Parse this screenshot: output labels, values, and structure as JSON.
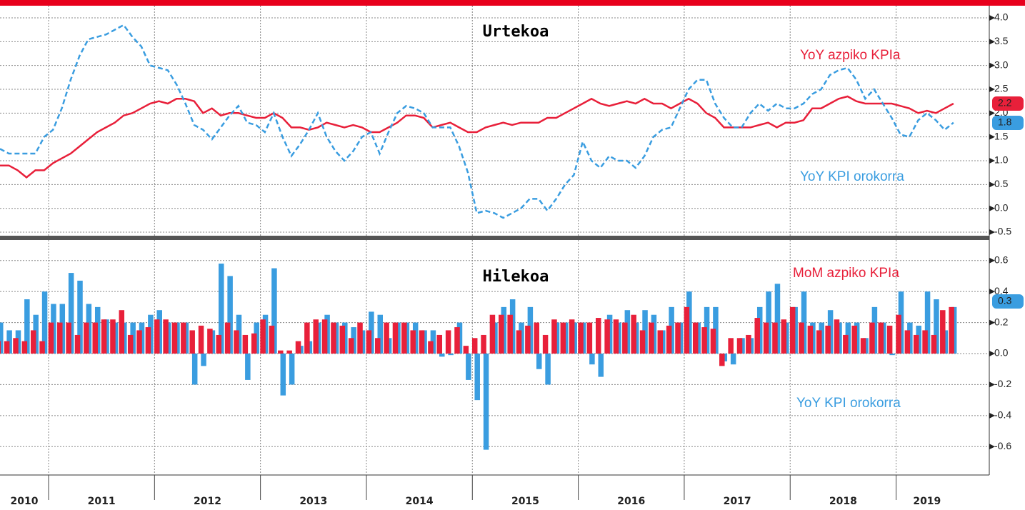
{
  "chart_data": [
    {
      "type": "line",
      "title": "Urtekoa",
      "annotations": [
        "YoY azpiko KPIa",
        "YoY KPI orokorra"
      ],
      "ylim": [
        -0.6,
        4.3
      ],
      "yticks": [
        {
          "value": 4,
          "label": "4.0"
        },
        3.5,
        {
          "value": 3,
          "label": "3.0"
        },
        2.5,
        {
          "value": 2,
          "label": "2.0"
        },
        1.5,
        {
          "value": 1,
          "label": "1.0"
        },
        0.5,
        {
          "value": 0,
          "label": "0.0"
        },
        -0.5
      ],
      "grid": true,
      "series": [
        {
          "name": "YoY azpiko KPIa",
          "color": "#e8203a",
          "dashed": false,
          "values": [
            0.9,
            0.9,
            0.8,
            0.65,
            0.8,
            0.8,
            0.95,
            1.05,
            1.15,
            1.3,
            1.45,
            1.6,
            1.7,
            1.8,
            1.95,
            2.0,
            2.1,
            2.2,
            2.25,
            2.2,
            2.3,
            2.3,
            2.25,
            2.0,
            2.1,
            1.95,
            2.0,
            2.0,
            1.95,
            1.9,
            1.9,
            2.0,
            1.9,
            1.7,
            1.7,
            1.65,
            1.7,
            1.8,
            1.75,
            1.7,
            1.75,
            1.7,
            1.6,
            1.6,
            1.7,
            1.8,
            1.95,
            1.95,
            1.9,
            1.7,
            1.75,
            1.8,
            1.7,
            1.6,
            1.6,
            1.7,
            1.75,
            1.8,
            1.75,
            1.8,
            1.8,
            1.8,
            1.9,
            1.9,
            2.0,
            2.1,
            2.2,
            2.3,
            2.2,
            2.15,
            2.2,
            2.25,
            2.2,
            2.3,
            2.2,
            2.2,
            2.1,
            2.2,
            2.3,
            2.2,
            2.0,
            1.9,
            1.7,
            1.7,
            1.7,
            1.7,
            1.75,
            1.8,
            1.7,
            1.8,
            1.8,
            1.85,
            2.1,
            2.1,
            2.2,
            2.3,
            2.35,
            2.25,
            2.2,
            2.2,
            2.2,
            2.2,
            2.15,
            2.1,
            2.0,
            2.05,
            2.0,
            2.1,
            2.2
          ]
        },
        {
          "name": "YoY KPI orokorra",
          "color": "#3a9de0",
          "dashed": true,
          "values": [
            1.25,
            1.15,
            1.15,
            1.15,
            1.15,
            1.5,
            1.65,
            2.1,
            2.7,
            3.2,
            3.55,
            3.6,
            3.65,
            3.75,
            3.85,
            3.6,
            3.4,
            3.0,
            2.95,
            2.9,
            2.6,
            2.2,
            1.75,
            1.65,
            1.45,
            1.7,
            1.95,
            2.15,
            1.8,
            1.75,
            1.6,
            2.0,
            1.5,
            1.1,
            1.35,
            1.65,
            2.0,
            1.5,
            1.2,
            1.0,
            1.2,
            1.5,
            1.6,
            1.15,
            1.6,
            2.0,
            2.15,
            2.1,
            2.0,
            1.7,
            1.7,
            1.7,
            1.3,
            0.75,
            -0.1,
            -0.05,
            -0.1,
            -0.2,
            -0.1,
            0.0,
            0.2,
            0.2,
            -0.05,
            0.2,
            0.5,
            0.7,
            1.4,
            1.0,
            0.85,
            1.1,
            1.0,
            1.0,
            0.85,
            1.1,
            1.5,
            1.65,
            1.7,
            2.1,
            2.5,
            2.7,
            2.7,
            2.2,
            1.9,
            1.7,
            1.7,
            2.0,
            2.2,
            2.05,
            2.2,
            2.1,
            2.1,
            2.2,
            2.4,
            2.5,
            2.8,
            2.9,
            2.95,
            2.7,
            2.3,
            2.5,
            2.2,
            1.9,
            1.55,
            1.5,
            1.85,
            2.0,
            1.85,
            1.65,
            1.8
          ]
        }
      ]
    },
    {
      "type": "bar",
      "title": "Hilekoa",
      "annotations": [
        "MoM azpiko KPIa",
        "YoY KPI orokorra"
      ],
      "x_labels": [
        "2010",
        "2011",
        "2012",
        "2013",
        "2014",
        "2015",
        "2016",
        "2017",
        "2018",
        "2019"
      ],
      "ylim": [
        -0.7,
        0.7
      ],
      "yticks": [
        0.6,
        0.4,
        0.2,
        {
          "value": 0,
          "label": "0.0"
        },
        -0.2,
        -0.4,
        -0.6
      ],
      "grid": true,
      "series": [
        {
          "name": "YoY KPI orokorra",
          "color": "#3a9de0",
          "values": [
            0.2,
            0.15,
            0.15,
            0.35,
            0.25,
            0.4,
            0.32,
            0.32,
            0.52,
            0.47,
            0.32,
            0.3,
            0.22,
            0.2,
            0.2,
            0.2,
            0.2,
            0.25,
            0.28,
            0.2,
            0.2,
            0.2,
            -0.2,
            -0.08,
            0.15,
            0.58,
            0.5,
            0.25,
            -0.17,
            0.2,
            0.25,
            0.55,
            -0.27,
            -0.2,
            0.05,
            0.08,
            0.2,
            0.25,
            0.2,
            0.2,
            0.17,
            0.15,
            0.27,
            0.25,
            0.1,
            0.2,
            0.2,
            0.2,
            0.15,
            0.15,
            -0.02,
            -0.01,
            0.2,
            -0.17,
            -0.3,
            -0.62,
            0.2,
            0.3,
            0.35,
            0.2,
            0.3,
            -0.1,
            -0.2,
            0.2,
            0.2,
            0.2,
            0.2,
            -0.07,
            -0.15,
            0.25,
            0.2,
            0.28,
            0.2,
            0.28,
            0.25,
            0.15,
            0.3,
            0.2,
            0.4,
            0.2,
            0.3,
            0.3,
            -0.05,
            -0.07,
            0.1,
            0.1,
            0.3,
            0.4,
            0.45,
            0.2,
            0.3,
            0.4,
            0.2,
            0.2,
            0.28,
            0.2,
            0.2,
            0.2,
            0.1,
            0.3,
            0.2,
            -0.01,
            0.4,
            0.2,
            0.18,
            0.4,
            0.35,
            0.15,
            0.3
          ]
        },
        {
          "name": "MoM azpiko KPIa",
          "color": "#e8203a",
          "values": [
            0.08,
            0.08,
            0.1,
            0.08,
            0.15,
            0.08,
            0.2,
            0.2,
            0.2,
            0.12,
            0.2,
            0.2,
            0.22,
            0.22,
            0.28,
            0.12,
            0.15,
            0.17,
            0.22,
            0.22,
            0.2,
            0.2,
            0.15,
            0.18,
            0.16,
            0.12,
            0.2,
            0.15,
            0.12,
            0.13,
            0.22,
            0.18,
            0.02,
            0.02,
            0.08,
            0.2,
            0.22,
            0.22,
            0.2,
            0.18,
            0.1,
            0.2,
            0.15,
            0.1,
            0.2,
            0.2,
            0.2,
            0.15,
            0.15,
            0.08,
            0.12,
            0.15,
            0.17,
            0.05,
            0.1,
            0.12,
            0.25,
            0.25,
            0.25,
            0.15,
            0.18,
            0.2,
            0.12,
            0.22,
            0.2,
            0.22,
            0.2,
            0.2,
            0.23,
            0.22,
            0.22,
            0.2,
            0.25,
            0.15,
            0.2,
            0.15,
            0.18,
            0.2,
            0.3,
            0.2,
            0.17,
            0.16,
            -0.08,
            0.1,
            0.1,
            0.12,
            0.23,
            0.2,
            0.2,
            0.22,
            0.3,
            0.2,
            0.18,
            0.15,
            0.18,
            0.22,
            0.12,
            0.18,
            0.1,
            0.2,
            0.2,
            0.18,
            0.25,
            0.15,
            0.12,
            0.15,
            0.12,
            0.28,
            0.3
          ]
        }
      ]
    }
  ]
}
